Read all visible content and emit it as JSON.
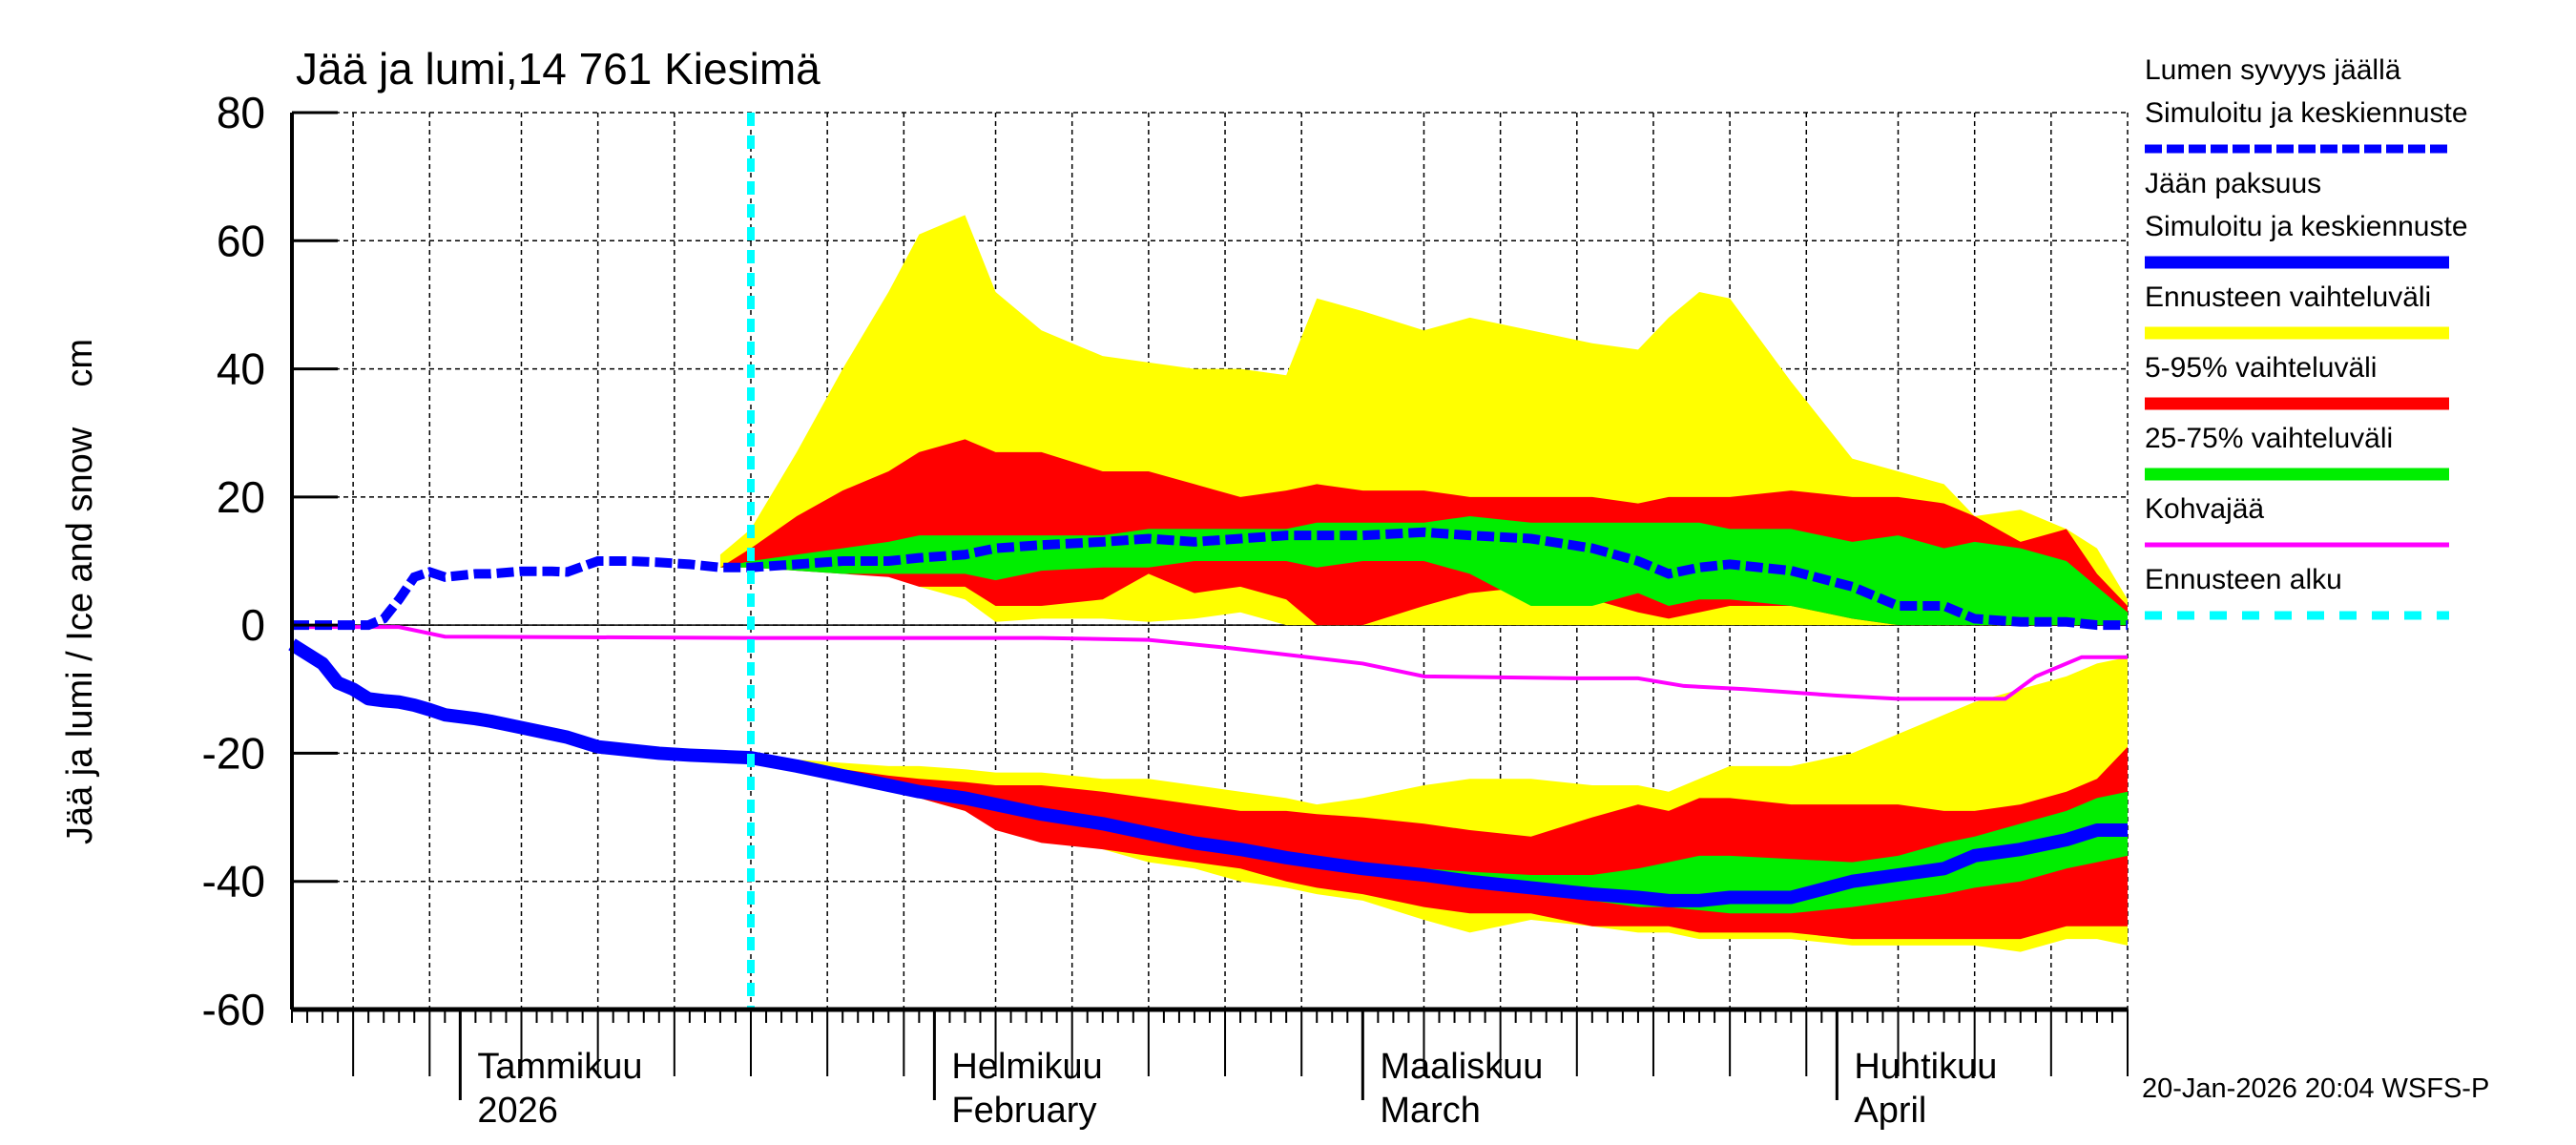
{
  "chart_data": {
    "type": "area",
    "title": "Jää ja lumi,14 761 Kiesimä",
    "ylabel": "Jää ja lumi / Ice and snow    cm",
    "ylim": [
      -60,
      80
    ],
    "yticks": [
      80,
      60,
      40,
      20,
      0,
      -20,
      -40,
      -60
    ],
    "xlim": [
      "2025-12-21",
      "2026-04-20"
    ],
    "grid": true,
    "legend_placement": "right",
    "month_labels": [
      {
        "date": "2026-01-01",
        "line1": "Tammikuu",
        "line2": "2026"
      },
      {
        "date": "2026-02-01",
        "line1": "Helmikuu",
        "line2": "February"
      },
      {
        "date": "2026-03-01",
        "line1": "Maaliskuu",
        "line2": "March"
      },
      {
        "date": "2026-04-01",
        "line1": "Huhtikuu",
        "line2": "April"
      }
    ],
    "forecast_start": "2026-01-20",
    "history": {
      "dates": [
        "2025-12-21",
        "2025-12-23",
        "2025-12-24",
        "2025-12-25",
        "2025-12-26",
        "2025-12-27",
        "2025-12-28",
        "2025-12-29",
        "2025-12-30",
        "2025-12-31",
        "2026-01-02",
        "2026-01-03",
        "2026-01-05",
        "2026-01-07",
        "2026-01-08",
        "2026-01-10",
        "2026-01-12",
        "2026-01-14",
        "2026-01-16",
        "2026-01-18",
        "2026-01-20"
      ],
      "snow_depth": [
        0,
        0,
        0,
        0,
        0,
        1,
        4,
        7.5,
        8.3,
        7.5,
        8,
        8,
        8.4,
        8.4,
        8.3,
        10,
        10,
        9.8,
        9.5,
        9,
        9
      ],
      "ice_thickness": [
        -3,
        -6,
        -9,
        -10,
        -11.5,
        -11.8,
        -12,
        -12.5,
        -13.2,
        -14,
        -14.6,
        -15,
        -16,
        -17,
        -17.5,
        -19,
        -19.5,
        -20,
        -20.3,
        -20.5,
        -20.7
      ]
    },
    "forecast": {
      "dates": [
        "2026-01-18",
        "2026-01-20",
        "2026-01-23",
        "2026-01-26",
        "2026-01-29",
        "2026-01-31",
        "2026-02-03",
        "2026-02-05",
        "2026-02-08",
        "2026-02-12",
        "2026-02-15",
        "2026-02-18",
        "2026-02-21",
        "2026-02-24",
        "2026-02-26",
        "2026-03-01",
        "2026-03-05",
        "2026-03-08",
        "2026-03-12",
        "2026-03-16",
        "2026-03-19",
        "2026-03-21",
        "2026-03-23",
        "2026-03-25",
        "2026-03-29",
        "2026-04-02",
        "2026-04-05",
        "2026-04-08",
        "2026-04-10",
        "2026-04-13",
        "2026-04-16",
        "2026-04-18",
        "2026-04-20"
      ],
      "snow": {
        "range_hi": [
          11,
          15,
          27,
          40,
          52,
          61,
          64,
          52,
          46,
          42,
          41,
          40,
          40,
          39,
          51,
          49,
          46,
          48,
          46,
          44,
          43,
          48,
          52,
          51,
          38,
          26,
          24,
          22,
          17,
          18,
          15,
          12,
          4
        ],
        "range_lo": [
          9,
          9,
          9,
          8.5,
          8,
          6,
          4,
          0.5,
          1,
          1,
          0.5,
          1,
          2,
          0,
          0,
          0,
          0,
          0,
          0,
          0,
          0,
          0,
          0,
          0,
          0,
          0,
          0,
          0,
          0,
          0,
          0,
          0,
          0
        ],
        "p95": [
          9,
          12,
          17,
          21,
          24,
          27,
          29,
          27,
          27,
          24,
          24,
          22,
          20,
          21,
          22,
          21,
          21,
          20,
          20,
          20,
          19,
          20,
          20,
          20,
          21,
          20,
          20,
          19,
          17,
          13,
          15,
          8,
          3
        ],
        "p5": [
          9,
          9,
          8.5,
          8,
          7.5,
          6,
          6,
          3,
          3,
          4,
          8,
          5,
          6,
          4,
          0,
          0,
          3,
          5,
          6,
          4,
          2,
          1,
          2,
          3,
          3,
          1,
          0,
          0,
          0,
          0,
          0,
          0,
          0
        ],
        "p75": [
          9,
          10,
          11,
          12,
          13,
          14,
          14,
          14,
          14,
          14,
          15,
          15,
          15,
          15,
          16,
          16,
          16,
          17,
          16,
          16,
          16,
          16,
          16,
          15,
          15,
          13,
          14,
          12,
          13,
          12,
          10,
          6,
          2
        ],
        "p25": [
          9,
          9,
          8.5,
          8,
          8,
          8,
          8,
          7,
          8.5,
          9,
          9,
          10,
          10,
          10,
          9,
          10,
          10,
          8,
          3,
          3,
          5,
          3,
          4,
          4,
          3,
          1,
          0,
          0,
          0,
          0,
          0,
          0,
          0
        ],
        "median": [
          9,
          9,
          9.5,
          10,
          10,
          10.5,
          11,
          12,
          12.5,
          13,
          13.5,
          13,
          13.5,
          14,
          14,
          14,
          14.5,
          14,
          13.5,
          12,
          10,
          8,
          9,
          9.5,
          8.5,
          6,
          3,
          3,
          1,
          0.5,
          0.5,
          0,
          0
        ]
      },
      "ice": {
        "range_hi": [
          -20.5,
          -20.7,
          -21,
          -21.5,
          -22,
          -22,
          -22.5,
          -23,
          -23,
          -24,
          -24,
          -25,
          -26,
          -27,
          -28,
          -27,
          -25,
          -24,
          -24,
          -25,
          -25,
          -26,
          -24,
          -22,
          -22,
          -20,
          -17,
          -14,
          -12,
          -10,
          -8,
          -6,
          -5
        ],
        "range_lo": [
          -20.5,
          -21,
          -23,
          -24.5,
          -26,
          -27,
          -29,
          -31,
          -33,
          -35,
          -37,
          -38,
          -40,
          -41,
          -42,
          -43,
          -46,
          -48,
          -46,
          -47,
          -48,
          -48,
          -49,
          -49,
          -49,
          -50,
          -50,
          -50,
          -50,
          -51,
          -49,
          -49,
          -50
        ],
        "p95": [
          -20.5,
          -20.7,
          -21.5,
          -22.5,
          -23.5,
          -24,
          -24.5,
          -25,
          -25,
          -26,
          -27,
          -28,
          -29,
          -29,
          -29.5,
          -30,
          -31,
          -32,
          -33,
          -30,
          -28,
          -29,
          -27,
          -27,
          -28,
          -28,
          -28,
          -29,
          -29,
          -28,
          -26,
          -24,
          -19
        ],
        "p5": [
          -20.5,
          -21,
          -22.5,
          -24,
          -25.5,
          -27,
          -29,
          -32,
          -34,
          -35,
          -36,
          -37,
          -38,
          -40,
          -41,
          -42,
          -44,
          -45,
          -45,
          -47,
          -47,
          -47,
          -48,
          -48,
          -48,
          -49,
          -49,
          -49,
          -49,
          -49,
          -47,
          -47,
          -47
        ],
        "p75": [
          -20.5,
          -20.7,
          -22,
          -23.3,
          -24.5,
          -25.5,
          -26.5,
          -27.5,
          -29,
          -30.5,
          -32,
          -33.5,
          -34.5,
          -35.5,
          -36,
          -37,
          -38,
          -38.5,
          -39,
          -39,
          -38,
          -37,
          -36,
          -36,
          -36.5,
          -37,
          -36,
          -34,
          -33,
          -31,
          -29,
          -27,
          -26
        ],
        "p25": [
          -20.5,
          -20.9,
          -22.3,
          -24,
          -25.5,
          -26.5,
          -28,
          -29,
          -30.5,
          -32,
          -33.5,
          -35,
          -36,
          -37,
          -38,
          -39,
          -40,
          -41,
          -42,
          -43,
          -44,
          -44,
          -44.5,
          -45,
          -45,
          -44,
          -43,
          -42,
          -41,
          -40,
          -38,
          -37,
          -36
        ],
        "median": [
          -20.5,
          -20.7,
          -22,
          -23.5,
          -25,
          -26,
          -27,
          -28,
          -29.5,
          -31,
          -32.5,
          -34,
          -35,
          -36.3,
          -37,
          -38,
          -39,
          -40,
          -41,
          -42,
          -42.5,
          -43,
          -43,
          -42.5,
          -42.5,
          -40,
          -39,
          -38,
          -36,
          -35,
          -33.5,
          -32,
          -32
        ]
      }
    },
    "kohvajaa": {
      "dates": [
        "2025-12-21",
        "2025-12-28",
        "2025-12-31",
        "2026-01-20",
        "2026-02-08",
        "2026-02-15",
        "2026-02-20",
        "2026-03-01",
        "2026-03-05",
        "2026-03-15",
        "2026-03-19",
        "2026-03-22",
        "2026-03-26",
        "2026-04-01",
        "2026-04-05",
        "2026-04-12",
        "2026-04-14",
        "2026-04-17",
        "2026-04-20"
      ],
      "values": [
        -0.3,
        -0.3,
        -1.8,
        -2,
        -2,
        -2.3,
        -3.5,
        -6,
        -8,
        -8.3,
        -8.3,
        -9.5,
        -10,
        -11,
        -11.5,
        -11.5,
        -8,
        -5,
        -5
      ]
    },
    "legend": [
      {
        "line1": "Lumen syvyys jäällä",
        "line2": "Simuloitu ja keskiennuste",
        "color": "#0000ff",
        "style": "dashed-thick"
      },
      {
        "line1": "Jään paksuus",
        "line2": "Simuloitu ja keskiennuste",
        "color": "#0000ff",
        "style": "solid-thick"
      },
      {
        "line1": "Ennusteen vaihteluväli",
        "color": "#ffff00",
        "style": "band"
      },
      {
        "line1": "5-95% vaihteluväli",
        "color": "#ff0000",
        "style": "band"
      },
      {
        "line1": "25-75% vaihteluväli",
        "color": "#00ee00",
        "style": "band"
      },
      {
        "line1": "Kohvajää",
        "color": "#ff00ff",
        "style": "solid-thin"
      },
      {
        "line1": "Ennusteen alku",
        "color": "#00ffff",
        "style": "dashed"
      }
    ],
    "colors": {
      "range": "#ffff00",
      "p5_95": "#ff0000",
      "p25_75": "#00ee00",
      "median": "#0000ff",
      "kohvajaa": "#ff00ff",
      "forecast_start": "#00ffff"
    },
    "footer": "20-Jan-2026 20:04 WSFS-P"
  }
}
